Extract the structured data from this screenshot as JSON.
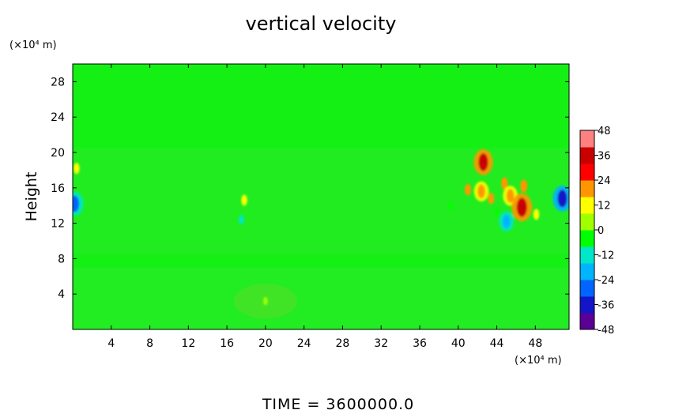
{
  "chart_data": {
    "type": "heatmap",
    "title": "vertical velocity",
    "xlabel": "",
    "x_units": "(×10⁴ m)",
    "ylabel": "Height",
    "y_units": "(×10⁴ m)",
    "xlim": [
      0,
      51.5
    ],
    "ylim": [
      0,
      30
    ],
    "x_ticks": [
      4,
      8,
      12,
      16,
      20,
      24,
      28,
      32,
      36,
      40,
      44,
      48
    ],
    "y_ticks": [
      4,
      8,
      12,
      16,
      20,
      24,
      28
    ],
    "colorbar": {
      "range": [
        -48,
        48
      ],
      "ticks": [
        48,
        36,
        24,
        12,
        0,
        -12,
        -24,
        -36,
        -48
      ],
      "colors": [
        "#5a0096",
        "#1414c8",
        "#0064ff",
        "#00b4ff",
        "#00e6c8",
        "#00ff00",
        "#a0ff00",
        "#ffff00",
        "#ff9600",
        "#ff0000",
        "#c80000",
        "#ff8080"
      ]
    },
    "background_value": 1,
    "features": [
      {
        "x": 0.2,
        "y": 14.2,
        "value": -30
      },
      {
        "x": 0.4,
        "y": 18.2,
        "value": 14
      },
      {
        "x": 17.8,
        "y": 14.6,
        "value": 14
      },
      {
        "x": 17.5,
        "y": 12.4,
        "value": -10
      },
      {
        "x": 42.6,
        "y": 18.9,
        "value": 34
      },
      {
        "x": 42.4,
        "y": 15.6,
        "value": 22
      },
      {
        "x": 43.4,
        "y": 14.8,
        "value": 16
      },
      {
        "x": 41.0,
        "y": 15.8,
        "value": 16
      },
      {
        "x": 44.8,
        "y": 16.5,
        "value": 18
      },
      {
        "x": 45.4,
        "y": 15.1,
        "value": 22
      },
      {
        "x": 46.6,
        "y": 13.8,
        "value": 38
      },
      {
        "x": 46.8,
        "y": 16.2,
        "value": 20
      },
      {
        "x": 45.0,
        "y": 12.2,
        "value": -22
      },
      {
        "x": 44.0,
        "y": 13.2,
        "value": -8
      },
      {
        "x": 48.1,
        "y": 13.0,
        "value": 14
      },
      {
        "x": 50.8,
        "y": 14.8,
        "value": -34
      },
      {
        "x": 39.2,
        "y": 14.0,
        "value": -8
      },
      {
        "x": 20.0,
        "y": 3.2,
        "value": 6
      }
    ]
  },
  "footer": "TIME  =  3600000.0"
}
